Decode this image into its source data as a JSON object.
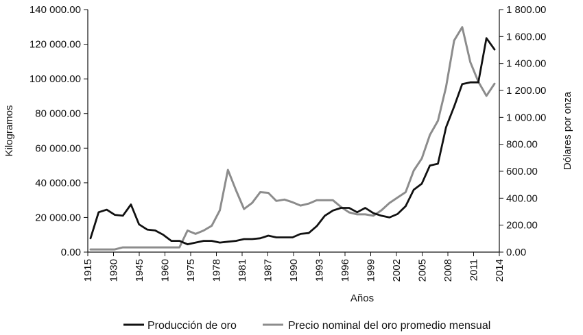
{
  "chart_data": {
    "type": "line",
    "title": "",
    "xlabel": "Años",
    "ylabel_left": "Kilogramos",
    "ylabel_right": "Dólares por onza",
    "ylim_left": [
      0,
      140000
    ],
    "ylim_right": [
      0,
      1800
    ],
    "left_ticks": [
      "0.00",
      "20 000.00",
      "40 000.00",
      "60 000.00",
      "80 000.00",
      "100 000.00",
      "120 000.00",
      "140 000.00"
    ],
    "right_ticks": [
      "0.00",
      "200.00",
      "400.00",
      "600.00",
      "800.00",
      "1 000.00",
      "1 200.00",
      "1 400.00",
      "1 600.00",
      "1 800.00"
    ],
    "x_tick_labels": [
      "1915",
      "1930",
      "1945",
      "1960",
      "1975",
      "1978",
      "1981",
      "1987",
      "1990",
      "1993",
      "1996",
      "1999",
      "2002",
      "2005",
      "2008",
      "2011",
      "2014"
    ],
    "grid": false,
    "legend_position": "bottom",
    "series": [
      {
        "name": "Producción de oro",
        "axis": "left",
        "color": "#111111",
        "values": [
          8000,
          23000,
          24500,
          21500,
          21000,
          27500,
          16000,
          13000,
          12500,
          10000,
          6500,
          6500,
          4500,
          5500,
          6500,
          6500,
          5500,
          6000,
          6500,
          7500,
          7500,
          8000,
          9500,
          8500,
          8500,
          8500,
          10500,
          11000,
          15000,
          21000,
          24000,
          25500,
          25500,
          23000,
          25500,
          22500,
          21000,
          20000,
          22000,
          26500,
          36000,
          39500,
          50000,
          51000,
          72000,
          84000,
          97000,
          98000,
          98000,
          123500,
          117000
        ]
      },
      {
        "name": "Precio nominal del oro promedio mensual",
        "axis": "right",
        "color": "#8c8c8c",
        "values": [
          20,
          20,
          20,
          20,
          35,
          35,
          35,
          35,
          35,
          35,
          35,
          35,
          160,
          135,
          160,
          195,
          310,
          610,
          460,
          320,
          365,
          445,
          440,
          380,
          390,
          370,
          345,
          360,
          385,
          385,
          385,
          335,
          295,
          280,
          280,
          270,
          310,
          365,
          405,
          445,
          605,
          695,
          870,
          975,
          1225,
          1570,
          1670,
          1410,
          1265,
          1160,
          1250
        ]
      }
    ]
  }
}
